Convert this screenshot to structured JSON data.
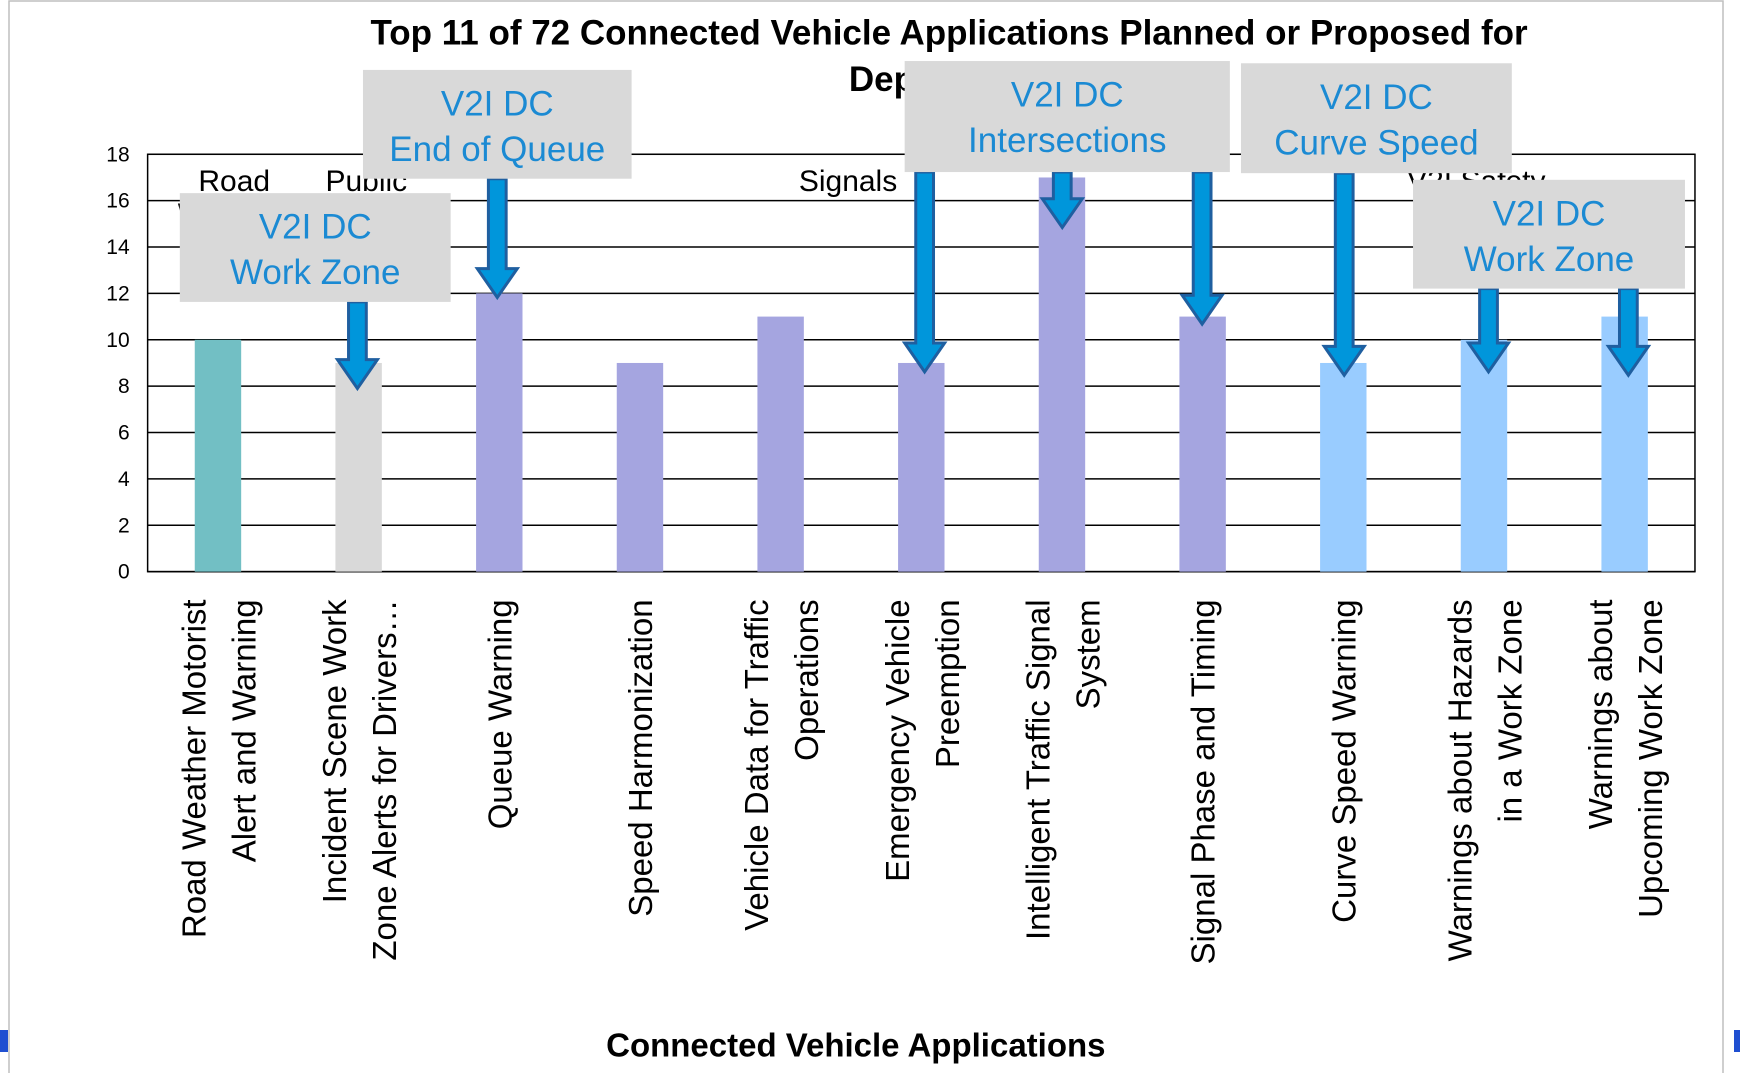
{
  "chart_data": {
    "type": "bar",
    "title": [
      "Top 11 of 72 Connected Vehicle Applications Planned or Proposed for",
      "Deployment"
    ],
    "x_label": "Connected Vehicle Applications",
    "categories": [
      "Road Weather Motorist\nAlert and Warning",
      "Incident Scene Work\nZone Alerts for Drivers…",
      "Queue Warning",
      "Speed Harmonization",
      "Vehicle Data for Traffic\nOperations",
      "Emergency Vehicle\nPreemption",
      "Intelligent Traffic Signal\nSystem",
      "Signal Phase and Timing",
      "Curve Speed Warning",
      "Warnings about Hazards\nin a Work Zone",
      "Warnings about\nUpcoming Work Zone"
    ],
    "values": [
      10,
      9,
      12,
      9,
      11,
      9,
      17,
      11,
      9,
      10,
      11
    ],
    "colors": [
      "#72bfc4",
      "#d9d9d9",
      "#a5a5e0",
      "#a5a5e0",
      "#a5a5e0",
      "#a5a5e0",
      "#a5a5e0",
      "#a5a5e0",
      "#99ccff",
      "#99ccff",
      "#99ccff"
    ],
    "ylim": [
      0,
      18
    ],
    "yticks": [
      0,
      2,
      4,
      6,
      8,
      10,
      12,
      14,
      16,
      18
    ],
    "grid": true,
    "groups": [
      "Road\nWeather",
      "Public\nSafety",
      "Signals",
      "V2I Safety"
    ],
    "annotations": [
      [
        "V2I DC",
        "Work Zone"
      ],
      [
        "V2I DC",
        "End of Queue"
      ],
      [
        "V2I DC",
        "Intersections"
      ],
      [
        "V2I DC",
        "Curve Speed"
      ],
      [
        "V2I DC",
        "Work Zone"
      ]
    ]
  }
}
